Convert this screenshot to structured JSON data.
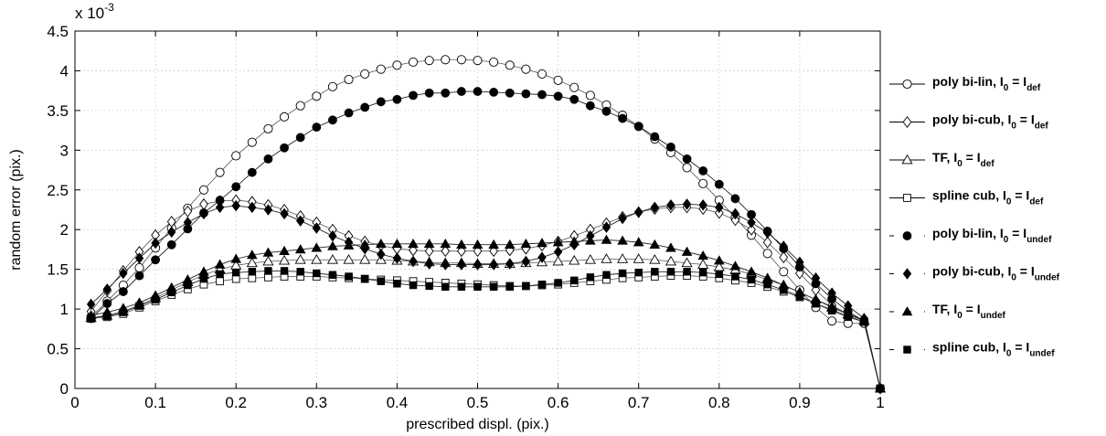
{
  "chart_data": {
    "type": "line",
    "xlabel": "prescribed displ. (pix.)",
    "ylabel": "random error (pix.)",
    "y_multiplier": "x 10",
    "y_exponent": "-3",
    "xlim": [
      0,
      1
    ],
    "ylim": [
      0,
      4.5
    ],
    "grid": true,
    "legend_position": "right, outside plot",
    "x_ticks": [
      "0",
      "0.1",
      "0.2",
      "0.3",
      "0.4",
      "0.5",
      "0.6",
      "0.7",
      "0.8",
      "0.9",
      "1"
    ],
    "y_ticks": [
      "0",
      "0.5",
      "1",
      "1.5",
      "2",
      "2.5",
      "3",
      "3.5",
      "4",
      "4.5"
    ],
    "x": [
      0.02,
      0.04,
      0.06,
      0.08,
      0.1,
      0.12,
      0.14,
      0.16,
      0.18,
      0.2,
      0.22,
      0.24,
      0.26,
      0.28,
      0.3,
      0.32,
      0.34,
      0.36,
      0.38,
      0.4,
      0.42,
      0.44,
      0.46,
      0.48,
      0.5,
      0.52,
      0.54,
      0.56,
      0.58,
      0.6,
      0.62,
      0.64,
      0.66,
      0.68,
      0.7,
      0.72,
      0.74,
      0.76,
      0.78,
      0.8,
      0.82,
      0.84,
      0.86,
      0.88,
      0.9,
      0.92,
      0.94,
      0.96,
      0.98,
      1.0
    ],
    "series": [
      {
        "name": "poly bi-lin",
        "label_main": "poly bi-lin, I",
        "label_sub0": "0",
        "label_eq": " = I",
        "label_sub": "def",
        "marker": "circle",
        "filled": false,
        "line": "solid",
        "values": [
          0.9,
          1.1,
          1.3,
          1.52,
          1.77,
          2.02,
          2.27,
          2.5,
          2.72,
          2.93,
          3.1,
          3.27,
          3.42,
          3.56,
          3.68,
          3.8,
          3.89,
          3.96,
          4.02,
          4.07,
          4.11,
          4.13,
          4.14,
          4.14,
          4.13,
          4.11,
          4.07,
          4.02,
          3.96,
          3.88,
          3.79,
          3.69,
          3.57,
          3.44,
          3.3,
          3.14,
          2.97,
          2.78,
          2.58,
          2.37,
          2.15,
          1.93,
          1.7,
          1.47,
          1.24,
          1.02,
          0.85,
          0.82,
          0.82,
          0.0
        ]
      },
      {
        "name": "poly bi-cub",
        "label_main": "poly bi-cub, I",
        "label_sub0": "0",
        "label_eq": " = I",
        "label_sub": "def",
        "marker": "diamond",
        "filled": false,
        "line": "solid",
        "values": [
          0.97,
          1.23,
          1.48,
          1.72,
          1.93,
          2.1,
          2.23,
          2.32,
          2.36,
          2.37,
          2.35,
          2.31,
          2.25,
          2.17,
          2.09,
          2.0,
          1.92,
          1.85,
          1.8,
          1.76,
          1.74,
          1.73,
          1.73,
          1.73,
          1.73,
          1.73,
          1.74,
          1.76,
          1.8,
          1.85,
          1.92,
          2.0,
          2.08,
          2.16,
          2.22,
          2.26,
          2.28,
          2.28,
          2.26,
          2.21,
          2.12,
          2.0,
          1.84,
          1.65,
          1.45,
          1.24,
          1.05,
          0.93,
          0.86,
          0.0
        ]
      },
      {
        "name": "TF",
        "label_main": "TF, I",
        "label_sub0": "0",
        "label_eq": " = I",
        "label_sub": "def",
        "marker": "triangle",
        "filled": false,
        "line": "solid",
        "values": [
          0.89,
          0.92,
          0.97,
          1.05,
          1.14,
          1.24,
          1.34,
          1.43,
          1.5,
          1.55,
          1.58,
          1.6,
          1.61,
          1.62,
          1.62,
          1.62,
          1.62,
          1.62,
          1.62,
          1.61,
          1.6,
          1.59,
          1.58,
          1.58,
          1.57,
          1.57,
          1.57,
          1.58,
          1.59,
          1.6,
          1.61,
          1.62,
          1.63,
          1.63,
          1.63,
          1.62,
          1.6,
          1.58,
          1.56,
          1.53,
          1.49,
          1.44,
          1.37,
          1.3,
          1.21,
          1.12,
          1.02,
          0.93,
          0.85,
          0.0
        ]
      },
      {
        "name": "spline cub",
        "label_main": "spline cub, I",
        "label_sub0": "0",
        "label_eq": " = I",
        "label_sub": "def",
        "marker": "square",
        "filled": false,
        "line": "solid",
        "values": [
          0.88,
          0.9,
          0.94,
          1.02,
          1.1,
          1.18,
          1.25,
          1.31,
          1.35,
          1.38,
          1.39,
          1.4,
          1.41,
          1.41,
          1.41,
          1.4,
          1.39,
          1.38,
          1.37,
          1.36,
          1.35,
          1.34,
          1.33,
          1.32,
          1.31,
          1.3,
          1.29,
          1.29,
          1.3,
          1.31,
          1.33,
          1.35,
          1.37,
          1.39,
          1.4,
          1.41,
          1.42,
          1.42,
          1.41,
          1.39,
          1.36,
          1.33,
          1.28,
          1.22,
          1.15,
          1.07,
          0.99,
          0.91,
          0.84,
          0.0
        ]
      },
      {
        "name": "poly bi-lin",
        "label_main": "poly bi-lin, I",
        "label_sub0": "0",
        "label_eq": " = I",
        "label_sub": "undef",
        "marker": "circle",
        "filled": true,
        "line": "dashed",
        "values": [
          0.88,
          1.07,
          1.22,
          1.42,
          1.62,
          1.81,
          2.01,
          2.21,
          2.37,
          2.54,
          2.72,
          2.89,
          3.03,
          3.16,
          3.29,
          3.38,
          3.47,
          3.54,
          3.61,
          3.64,
          3.69,
          3.72,
          3.72,
          3.74,
          3.74,
          3.73,
          3.72,
          3.71,
          3.7,
          3.68,
          3.64,
          3.56,
          3.49,
          3.4,
          3.3,
          3.17,
          3.04,
          2.89,
          2.74,
          2.57,
          2.39,
          2.19,
          1.98,
          1.76,
          1.53,
          1.32,
          1.13,
          0.97,
          0.85,
          0.0
        ]
      },
      {
        "name": "poly bi-cub",
        "label_main": "poly bi-cub, I",
        "label_sub0": "0",
        "label_eq": " = I",
        "label_sub": "undef",
        "marker": "diamond",
        "filled": true,
        "line": "dashed",
        "values": [
          1.06,
          1.25,
          1.45,
          1.64,
          1.83,
          1.97,
          2.09,
          2.2,
          2.28,
          2.3,
          2.28,
          2.25,
          2.2,
          2.11,
          2.02,
          1.92,
          1.84,
          1.76,
          1.69,
          1.64,
          1.6,
          1.57,
          1.56,
          1.56,
          1.56,
          1.56,
          1.57,
          1.6,
          1.65,
          1.72,
          1.81,
          1.92,
          2.03,
          2.14,
          2.22,
          2.28,
          2.31,
          2.32,
          2.31,
          2.28,
          2.2,
          2.09,
          1.96,
          1.79,
          1.59,
          1.39,
          1.2,
          1.04,
          0.88,
          0.0
        ]
      },
      {
        "name": "TF",
        "label_main": "TF, I",
        "label_sub0": "0",
        "label_eq": " = I",
        "label_sub": "undef",
        "marker": "triangle",
        "filled": true,
        "line": "dashed",
        "values": [
          0.92,
          0.96,
          1.01,
          1.08,
          1.17,
          1.27,
          1.37,
          1.47,
          1.56,
          1.63,
          1.68,
          1.71,
          1.73,
          1.75,
          1.77,
          1.79,
          1.8,
          1.81,
          1.82,
          1.82,
          1.82,
          1.82,
          1.82,
          1.81,
          1.81,
          1.81,
          1.81,
          1.82,
          1.83,
          1.84,
          1.85,
          1.86,
          1.87,
          1.86,
          1.84,
          1.81,
          1.77,
          1.72,
          1.67,
          1.61,
          1.54,
          1.47,
          1.39,
          1.3,
          1.21,
          1.12,
          1.03,
          0.94,
          0.86,
          0.0
        ]
      },
      {
        "name": "spline cub",
        "label_main": "spline cub, I",
        "label_sub0": "0",
        "label_eq": " = I",
        "label_sub": "undef",
        "marker": "square",
        "filled": true,
        "line": "dashed",
        "values": [
          0.89,
          0.91,
          0.96,
          1.04,
          1.12,
          1.21,
          1.3,
          1.38,
          1.44,
          1.46,
          1.47,
          1.48,
          1.48,
          1.47,
          1.45,
          1.43,
          1.41,
          1.38,
          1.35,
          1.32,
          1.3,
          1.29,
          1.28,
          1.28,
          1.28,
          1.28,
          1.28,
          1.29,
          1.31,
          1.33,
          1.36,
          1.4,
          1.43,
          1.45,
          1.46,
          1.47,
          1.47,
          1.47,
          1.46,
          1.44,
          1.41,
          1.37,
          1.31,
          1.24,
          1.16,
          1.07,
          0.98,
          0.9,
          0.84,
          0.0
        ]
      }
    ]
  }
}
